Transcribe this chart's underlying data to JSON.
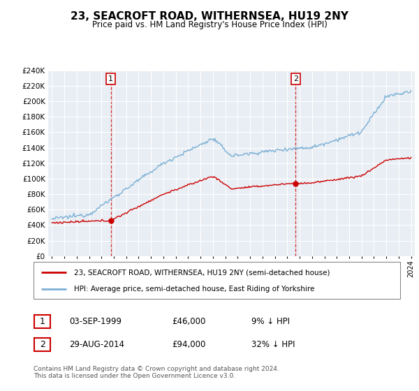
{
  "title": "23, SEACROFT ROAD, WITHERNSEA, HU19 2NY",
  "subtitle": "Price paid vs. HM Land Registry's House Price Index (HPI)",
  "ylim": [
    0,
    240000
  ],
  "ytick_values": [
    0,
    20000,
    40000,
    60000,
    80000,
    100000,
    120000,
    140000,
    160000,
    180000,
    200000,
    220000,
    240000
  ],
  "sale1_t": 4.75,
  "sale1_price": 46000,
  "sale2_t": 19.67,
  "sale2_price": 94000,
  "hpi_color": "#7bafd4",
  "sale_color": "#cc0000",
  "marker_color": "#cc0000",
  "legend_line1": "23, SEACROFT ROAD, WITHERNSEA, HU19 2NY (semi-detached house)",
  "legend_line2": "HPI: Average price, semi-detached house, East Riding of Yorkshire",
  "footer": "Contains HM Land Registry data © Crown copyright and database right 2024.\nThis data is licensed under the Open Government Licence v3.0.",
  "plot_bg": "#e8eef4",
  "grid_color": "white",
  "sale1_date_str": "03-SEP-1999",
  "sale1_price_str": "£46,000",
  "sale1_pct_str": "9% ↓ HPI",
  "sale2_date_str": "29-AUG-2014",
  "sale2_price_str": "£94,000",
  "sale2_pct_str": "32% ↓ HPI"
}
